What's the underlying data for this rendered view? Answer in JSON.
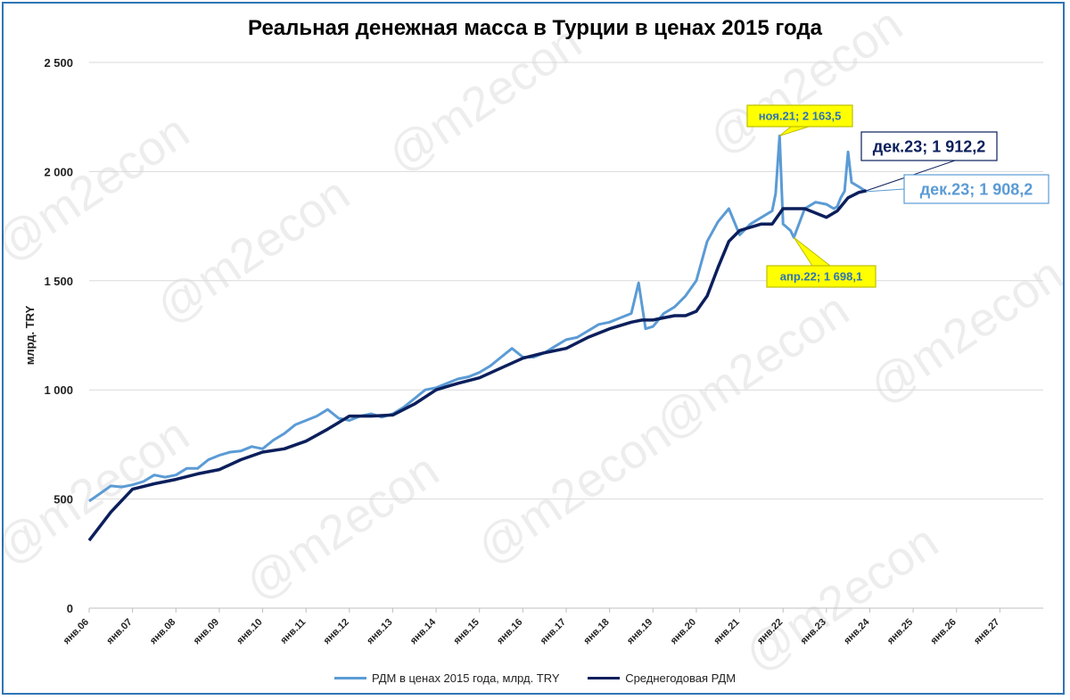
{
  "watermark": "@m2econ",
  "colors": {
    "monthly": "#5b9bd5",
    "average": "#0b1f5c",
    "callout_yellow": "#ffff00",
    "frame": "#2e75b6",
    "grid": "#d9d9d9"
  },
  "chart_data": {
    "type": "line",
    "title": "Реальная денежная масса в Турции в ценах 2015 года",
    "xlabel": "",
    "ylabel": "млрд. TRY",
    "ylim": [
      0,
      2500
    ],
    "yticks": [
      0,
      500,
      1000,
      1500,
      2000,
      2500
    ],
    "ytick_labels": [
      "0",
      "500",
      "1 000",
      "1 500",
      "2 000",
      "2 500"
    ],
    "xlim": [
      2006.0,
      2028.0
    ],
    "xtick_years": [
      2006,
      2007,
      2008,
      2009,
      2010,
      2011,
      2012,
      2013,
      2014,
      2015,
      2016,
      2017,
      2018,
      2019,
      2020,
      2021,
      2022,
      2023,
      2024,
      2025,
      2026,
      2027
    ],
    "xtick_labels": [
      "янв.06",
      "янв.07",
      "янв.08",
      "янв.09",
      "янв.10",
      "янв.11",
      "янв.12",
      "янв.13",
      "янв.14",
      "янв.15",
      "янв.16",
      "янв.17",
      "янв.18",
      "янв.19",
      "янв.20",
      "янв.21",
      "янв.22",
      "янв.23",
      "янв.24",
      "янв.25",
      "янв.26",
      "янв.27"
    ],
    "grid": true,
    "legend_position": "bottom",
    "series": [
      {
        "name": "РДМ в ценах 2015 года, млрд. TRY",
        "x": [
          2006.0,
          2006.25,
          2006.5,
          2006.75,
          2007.0,
          2007.25,
          2007.5,
          2007.75,
          2008.0,
          2008.25,
          2008.5,
          2008.75,
          2009.0,
          2009.25,
          2009.5,
          2009.75,
          2010.0,
          2010.25,
          2010.5,
          2010.75,
          2011.0,
          2011.25,
          2011.5,
          2011.75,
          2012.0,
          2012.25,
          2012.5,
          2012.75,
          2013.0,
          2013.25,
          2013.5,
          2013.75,
          2014.0,
          2014.25,
          2014.5,
          2014.75,
          2015.0,
          2015.25,
          2015.5,
          2015.75,
          2016.0,
          2016.25,
          2016.5,
          2016.75,
          2017.0,
          2017.25,
          2017.5,
          2017.75,
          2018.0,
          2018.25,
          2018.5,
          2018.67,
          2018.83,
          2019.0,
          2019.25,
          2019.5,
          2019.75,
          2020.0,
          2020.25,
          2020.5,
          2020.75,
          2021.0,
          2021.25,
          2021.5,
          2021.75,
          2021.83,
          2021.92,
          2022.0,
          2022.17,
          2022.25,
          2022.5,
          2022.75,
          2023.0,
          2023.17,
          2023.25,
          2023.33,
          2023.42,
          2023.5,
          2023.58,
          2023.75,
          2023.92
        ],
        "values": [
          490,
          525,
          560,
          555,
          565,
          580,
          610,
          600,
          610,
          640,
          640,
          680,
          700,
          715,
          720,
          740,
          730,
          770,
          800,
          840,
          860,
          880,
          910,
          870,
          860,
          880,
          890,
          875,
          890,
          920,
          960,
          1000,
          1010,
          1030,
          1050,
          1060,
          1080,
          1110,
          1150,
          1190,
          1150,
          1150,
          1170,
          1200,
          1230,
          1240,
          1270,
          1300,
          1310,
          1330,
          1350,
          1490,
          1280,
          1290,
          1350,
          1380,
          1430,
          1500,
          1680,
          1770,
          1830,
          1710,
          1760,
          1790,
          1820,
          1900,
          2163.5,
          1760,
          1730,
          1698.1,
          1830,
          1860,
          1850,
          1830,
          1840,
          1880,
          1910,
          2090,
          1950,
          1930,
          1908.2
        ]
      },
      {
        "name": "Среднегодовая РДМ",
        "x": [
          2006.0,
          2006.5,
          2007.0,
          2007.5,
          2008.0,
          2008.5,
          2009.0,
          2009.5,
          2010.0,
          2010.5,
          2011.0,
          2011.5,
          2012.0,
          2012.5,
          2013.0,
          2013.5,
          2014.0,
          2014.5,
          2015.0,
          2015.5,
          2016.0,
          2016.5,
          2017.0,
          2017.5,
          2018.0,
          2018.5,
          2018.75,
          2019.0,
          2019.25,
          2019.5,
          2019.75,
          2020.0,
          2020.25,
          2020.5,
          2020.75,
          2021.0,
          2021.5,
          2021.75,
          2022.0,
          2022.25,
          2022.5,
          2022.75,
          2023.0,
          2023.25,
          2023.5,
          2023.75,
          2023.92
        ],
        "values": [
          310,
          440,
          545,
          570,
          590,
          615,
          635,
          680,
          715,
          730,
          765,
          820,
          880,
          880,
          885,
          935,
          1000,
          1030,
          1055,
          1100,
          1145,
          1170,
          1190,
          1240,
          1280,
          1310,
          1320,
          1320,
          1330,
          1340,
          1340,
          1360,
          1430,
          1560,
          1680,
          1730,
          1760,
          1760,
          1830,
          1830,
          1830,
          1810,
          1790,
          1820,
          1880,
          1905,
          1912.2
        ]
      }
    ],
    "annotations": [
      {
        "text": "ноя.21; 2 163,5",
        "x": 2021.92,
        "y": 2163.5,
        "style": "yellow"
      },
      {
        "text": "апр.22; 1 698,1",
        "x": 2022.25,
        "y": 1698.1,
        "style": "yellow"
      },
      {
        "text": "дек.23; 1 912,2",
        "x": 2023.92,
        "y": 1912.2,
        "style": "navy"
      },
      {
        "text": "дек.23; 1 908,2",
        "x": 2023.92,
        "y": 1908.2,
        "style": "blue"
      }
    ]
  }
}
